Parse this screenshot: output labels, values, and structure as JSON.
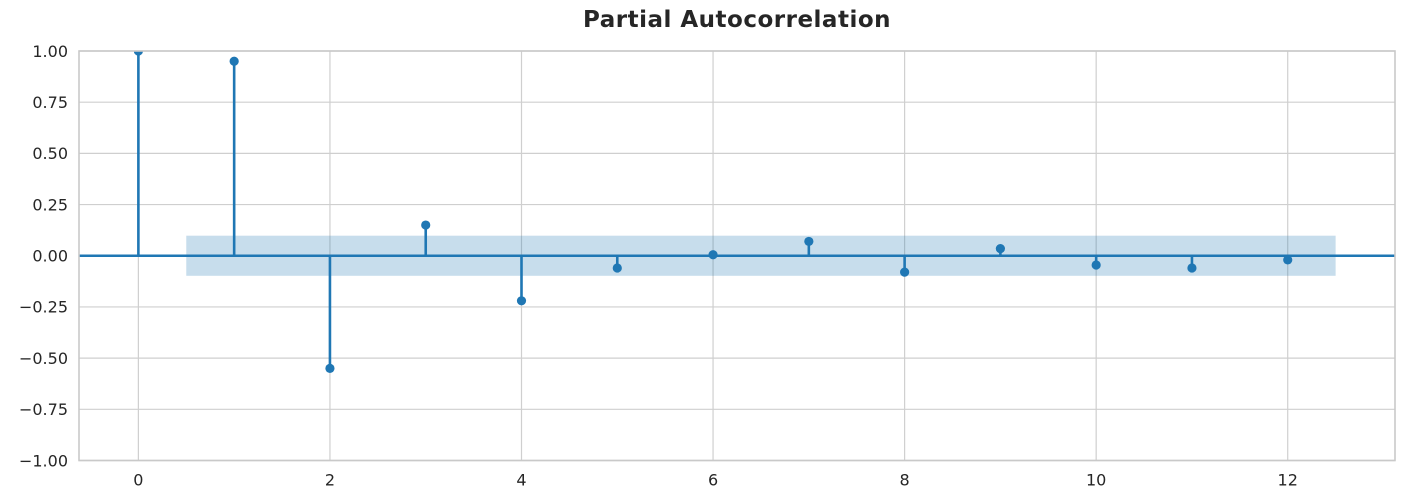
{
  "figure": {
    "title": "Partial Autocorrelation"
  },
  "chart_data": {
    "type": "stem",
    "title": "Partial Autocorrelation",
    "xlabel": "",
    "ylabel": "",
    "x": [
      0,
      1,
      2,
      3,
      4,
      5,
      6,
      7,
      8,
      9,
      10,
      11,
      12
    ],
    "values": [
      1.0,
      0.95,
      -0.55,
      0.15,
      -0.22,
      -0.06,
      0.005,
      0.07,
      -0.08,
      0.035,
      -0.045,
      -0.06,
      -0.02
    ],
    "xlim": [
      -0.62,
      13.12
    ],
    "ylim": [
      -1.0,
      1.0
    ],
    "xticks": [
      0,
      2,
      4,
      6,
      8,
      10,
      12
    ],
    "xtick_labels": [
      "0",
      "2",
      "4",
      "6",
      "8",
      "10",
      "12"
    ],
    "yticks": [
      1.0,
      0.75,
      0.5,
      0.25,
      0.0,
      -0.25,
      -0.5,
      -0.75,
      -1.0
    ],
    "ytick_labels": [
      "1.00",
      "0.75",
      "0.50",
      "0.25",
      "0.00",
      "−0.25",
      "−0.50",
      "−0.75",
      "−1.00"
    ],
    "confidence_band": {
      "x_start": 0.5,
      "x_end": 12.5,
      "y_low": -0.098,
      "y_high": 0.098
    },
    "grid": true,
    "legend": null,
    "colors": {
      "stem": "#1f77b4",
      "marker": "#1f77b4",
      "zero_line": "#1f77b4",
      "band": "rgba(31,119,180,0.25)",
      "grid": "#cfcfcf",
      "spine": "#c9c9c9",
      "tick_label": "#262626",
      "title": "#262626",
      "background": "#ffffff"
    }
  }
}
